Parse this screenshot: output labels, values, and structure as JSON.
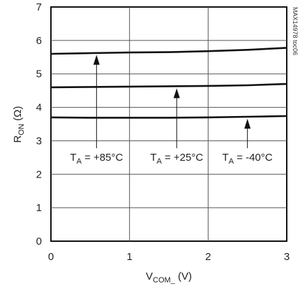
{
  "chart_data": {
    "type": "line",
    "xlabel": {
      "main": "V",
      "sub": "COM_",
      "unit": " (V)"
    },
    "ylabel": {
      "main": "R",
      "sub": "ON",
      "unit": " (Ω)"
    },
    "xlim": [
      0,
      3
    ],
    "ylim": [
      0,
      7
    ],
    "x_ticks": [
      "0",
      "1",
      "2",
      "3"
    ],
    "y_ticks": [
      "0",
      "1",
      "2",
      "3",
      "4",
      "5",
      "6",
      "7"
    ],
    "grid": true,
    "series": [
      {
        "name": "TA = +85°C",
        "color": "#111111",
        "x": [
          0,
          0.5,
          1,
          1.5,
          2,
          2.5,
          3
        ],
        "y": [
          5.6,
          5.62,
          5.64,
          5.65,
          5.68,
          5.72,
          5.78
        ]
      },
      {
        "name": "TA = +25°C",
        "color": "#111111",
        "x": [
          0,
          0.5,
          1,
          1.5,
          2,
          2.5,
          3
        ],
        "y": [
          4.6,
          4.61,
          4.62,
          4.63,
          4.64,
          4.66,
          4.7
        ]
      },
      {
        "name": "TA = -40°C",
        "color": "#111111",
        "x": [
          0,
          0.5,
          1,
          1.5,
          2,
          2.5,
          3
        ],
        "y": [
          3.7,
          3.69,
          3.69,
          3.69,
          3.7,
          3.72,
          3.74
        ]
      }
    ],
    "annotations": [
      {
        "pre": "T",
        "sub": "A",
        "post": " = +85°C",
        "label_x": 0.58,
        "label_y": 2.5,
        "arrow_to_y": 5.63
      },
      {
        "pre": "T",
        "sub": "A",
        "post": " = +25°C",
        "label_x": 1.6,
        "label_y": 2.5,
        "arrow_to_y": 4.63
      },
      {
        "pre": "T",
        "sub": "A",
        "post": " = -40°C",
        "label_x": 2.5,
        "label_y": 2.5,
        "arrow_to_y": 3.72
      }
    ],
    "watermark": "MAX14978 toc06"
  }
}
